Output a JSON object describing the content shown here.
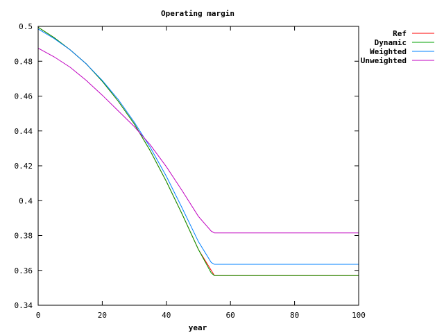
{
  "chart_data": {
    "type": "line",
    "title": "Operating margin",
    "xlabel": "year",
    "ylabel": "",
    "xlim": [
      0,
      100
    ],
    "ylim": [
      0.34,
      0.5
    ],
    "x_ticks": [
      "0",
      "20",
      "40",
      "60",
      "80",
      "100"
    ],
    "y_ticks": [
      "0.34",
      "0.36",
      "0.38",
      "0.4",
      "0.42",
      "0.44",
      "0.46",
      "0.48",
      "0.5"
    ],
    "grid": false,
    "legend_position": "top-right, outside plot",
    "series": [
      {
        "name": "Ref",
        "color": "#ff0000",
        "x": [
          0,
          5,
          10,
          15,
          20,
          25,
          30,
          35,
          40,
          45,
          50,
          55,
          60,
          70,
          80,
          90,
          100
        ],
        "y": [
          0.4995,
          0.4935,
          0.4865,
          0.4785,
          0.4685,
          0.457,
          0.444,
          0.4285,
          0.411,
          0.392,
          0.372,
          0.357,
          0.357,
          0.357,
          0.357,
          0.357,
          0.357
        ]
      },
      {
        "name": "Dynamic",
        "color": "#00a000",
        "x": [
          0,
          5,
          10,
          15,
          20,
          25,
          30,
          35,
          40,
          45,
          50,
          54,
          55,
          60,
          70,
          80,
          90,
          100
        ],
        "y": [
          0.4995,
          0.4935,
          0.4865,
          0.4785,
          0.4685,
          0.457,
          0.444,
          0.4285,
          0.411,
          0.392,
          0.372,
          0.3585,
          0.357,
          0.357,
          0.357,
          0.357,
          0.357,
          0.357
        ]
      },
      {
        "name": "Weighted",
        "color": "#0080ff",
        "x": [
          0,
          5,
          10,
          15,
          20,
          25,
          30,
          35,
          40,
          45,
          50,
          54,
          55,
          60,
          70,
          80,
          90,
          100
        ],
        "y": [
          0.4985,
          0.493,
          0.4865,
          0.4785,
          0.469,
          0.458,
          0.445,
          0.4305,
          0.414,
          0.3955,
          0.3765,
          0.3645,
          0.3635,
          0.3635,
          0.3635,
          0.3635,
          0.3635,
          0.3635
        ]
      },
      {
        "name": "Unweighted",
        "color": "#c000c0",
        "x": [
          0,
          5,
          10,
          15,
          20,
          25,
          30,
          35,
          40,
          45,
          50,
          54,
          55,
          60,
          70,
          80,
          90,
          100
        ],
        "y": [
          0.4875,
          0.4825,
          0.4765,
          0.469,
          0.4605,
          0.4515,
          0.4425,
          0.432,
          0.4195,
          0.4055,
          0.391,
          0.3825,
          0.3815,
          0.3815,
          0.3815,
          0.3815,
          0.3815,
          0.3815
        ]
      }
    ]
  }
}
